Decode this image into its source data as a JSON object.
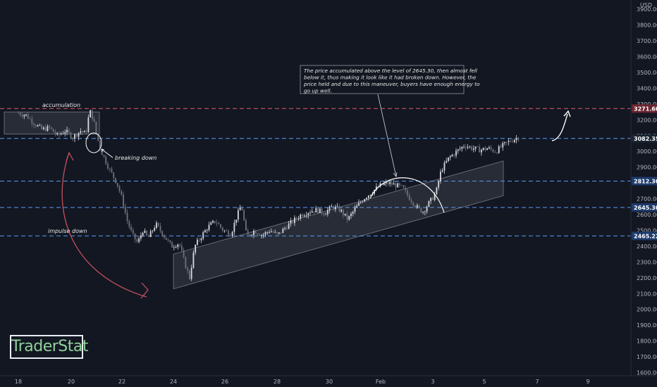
{
  "watermark": "TraderStat",
  "price_tag_accent": "3082.35",
  "chart_data": {
    "type": "candlestick",
    "currency": "USD",
    "y_ticks": [
      1600,
      1700,
      1800,
      1900,
      2000,
      2100,
      2200,
      2300,
      2400,
      2500,
      2600,
      2700,
      2800,
      2900,
      3000,
      3100,
      3200,
      3300,
      3400,
      3500,
      3600,
      3700,
      3800,
      3900
    ],
    "y_tick_labels": [
      "1600.00",
      "1700.00",
      "1800.00",
      "1900.00",
      "2000.00",
      "2100.00",
      "2200.00",
      "2300.00",
      "2400.00",
      "2500.00",
      "2600.00",
      "2700.00",
      "2800.00",
      "2900.00",
      "3000.00",
      "3100.00",
      "3200.00",
      "3300.00",
      "3400.00",
      "3500.00",
      "3600.00",
      "3700.00",
      "3800.00",
      "3900.00"
    ],
    "ylim": [
      1580,
      3950
    ],
    "x_ticks": [
      "18",
      "20",
      "22",
      "24",
      "26",
      "28",
      "30",
      "Feb",
      "3",
      "5",
      "7",
      "9"
    ],
    "levels": [
      {
        "value": 3271.6,
        "label": "3271.60",
        "color": "#e05a6c",
        "style": "dashed"
      },
      {
        "value": 3082.35,
        "label": "3082.35",
        "color": "#5b9cf6",
        "style": "dashed"
      },
      {
        "value": 2812.3,
        "label": "2812.30",
        "color": "#5b9cf6",
        "style": "dashed"
      },
      {
        "value": 2645.3,
        "label": "2645.30",
        "color": "#5b9cf6",
        "style": "dashed"
      },
      {
        "value": 2465.22,
        "label": "2465.22",
        "color": "#5b9cf6",
        "style": "dashed"
      }
    ],
    "annotations": {
      "accumulation": "accumulation",
      "breaking_down": "breaking down",
      "impulse_down": "impulse down",
      "note_lines": [
        "The price accumulated above the level of 2645.30, then almost fell",
        "below it, thus making it look like it had broken down. However, the",
        "price held and due to this maneuver, buyers have enough energy to",
        "go up well."
      ]
    },
    "price_path": [
      [
        18,
        3244
      ],
      [
        18.3,
        3230
      ],
      [
        18.6,
        3180
      ],
      [
        18.9,
        3140
      ],
      [
        19.2,
        3150
      ],
      [
        19.5,
        3100
      ],
      [
        19.8,
        3130
      ],
      [
        20.1,
        3090
      ],
      [
        20.4,
        3130
      ],
      [
        20.6,
        3110
      ],
      [
        20.75,
        3260
      ],
      [
        20.9,
        3200
      ],
      [
        21.0,
        3110
      ],
      [
        21.2,
        3000
      ],
      [
        21.5,
        2890
      ],
      [
        21.8,
        2800
      ],
      [
        22.0,
        2700
      ],
      [
        22.2,
        2560
      ],
      [
        22.4,
        2470
      ],
      [
        22.6,
        2420
      ],
      [
        22.8,
        2500
      ],
      [
        23.0,
        2450
      ],
      [
        23.3,
        2540
      ],
      [
        23.6,
        2470
      ],
      [
        23.9,
        2400
      ],
      [
        24.2,
        2420
      ],
      [
        24.4,
        2300
      ],
      [
        24.6,
        2200
      ],
      [
        24.8,
        2400
      ],
      [
        25.0,
        2450
      ],
      [
        25.3,
        2520
      ],
      [
        25.6,
        2560
      ],
      [
        25.9,
        2500
      ],
      [
        26.2,
        2480
      ],
      [
        26.4,
        2580
      ],
      [
        26.6,
        2660
      ],
      [
        26.8,
        2460
      ],
      [
        27.1,
        2500
      ],
      [
        27.4,
        2470
      ],
      [
        27.7,
        2500
      ],
      [
        28.0,
        2470
      ],
      [
        28.3,
        2520
      ],
      [
        28.6,
        2560
      ],
      [
        28.9,
        2600
      ],
      [
        29.2,
        2620
      ],
      [
        29.5,
        2630
      ],
      [
        29.8,
        2610
      ],
      [
        30.1,
        2650
      ],
      [
        30.4,
        2630
      ],
      [
        30.7,
        2570
      ],
      [
        31.0,
        2640
      ],
      [
        31.3,
        2700
      ],
      [
        31.6,
        2740
      ],
      [
        31.9,
        2780
      ],
      [
        32.2,
        2800
      ],
      [
        32.5,
        2790
      ],
      [
        32.8,
        2770
      ],
      [
        33.1,
        2700
      ],
      [
        33.4,
        2640
      ],
      [
        33.6,
        2620
      ],
      [
        33.9,
        2690
      ],
      [
        34.1,
        2740
      ],
      [
        34.3,
        2880
      ],
      [
        34.6,
        2960
      ],
      [
        34.9,
        3000
      ],
      [
        35.2,
        3040
      ],
      [
        35.5,
        3020
      ],
      [
        35.8,
        3010
      ],
      [
        36.1,
        3020
      ],
      [
        36.4,
        3000
      ],
      [
        36.7,
        3040
      ],
      [
        37.0,
        3070
      ],
      [
        37.3,
        3090
      ]
    ],
    "channels": [
      {
        "from": [
          24.1,
          2130
        ],
        "to": [
          35.5,
          2720
        ],
        "width": 220,
        "fill": "#3a3e48"
      },
      {
        "from": [
          17.6,
          3110
        ],
        "to": [
          21.1,
          3110
        ],
        "height": 140,
        "fill": "#3a3e48"
      }
    ]
  }
}
